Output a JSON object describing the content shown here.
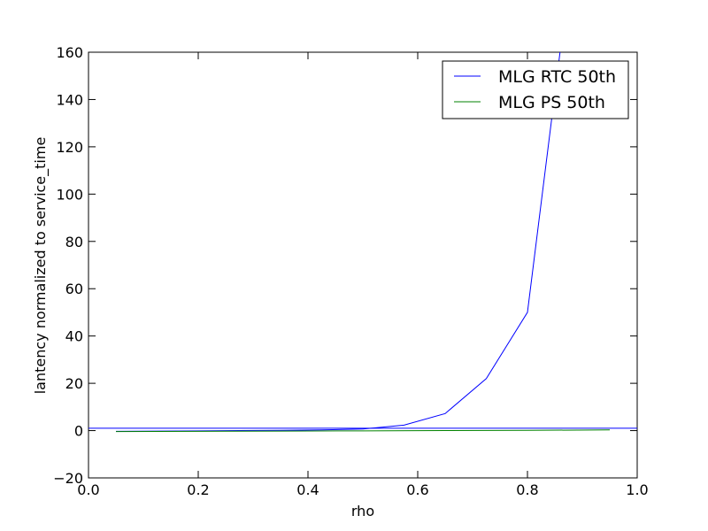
{
  "chart_data": {
    "type": "line",
    "xlabel": "rho",
    "ylabel": "lantency normalized to service_time",
    "xlim": [
      0,
      1
    ],
    "ylim": [
      -20,
      160
    ],
    "xticks": [
      {
        "value": 0,
        "label": "0.0"
      },
      0.2,
      0.4,
      0.6,
      0.8,
      {
        "value": 1,
        "label": "1.0"
      }
    ],
    "yticks": [
      {
        "value": -20,
        "label": "−20"
      },
      0,
      20,
      40,
      60,
      80,
      100,
      120,
      140,
      160
    ],
    "hline": {
      "value": 1,
      "color": "#0000ff"
    },
    "legend": "upper right",
    "series": [
      {
        "name": "MLG RTC 50th",
        "color": "#0000ff",
        "x": [
          0.05,
          0.125,
          0.2,
          0.275,
          0.35,
          0.425,
          0.5,
          0.575,
          0.65,
          0.725,
          0.8,
          0.875
        ],
        "values": [
          -0.3,
          -0.2,
          -0.1,
          0,
          0.1,
          0.3,
          0.7,
          2.3,
          7.2,
          22,
          50,
          189
        ]
      },
      {
        "name": "MLG PS 50th",
        "color": "#008000",
        "x": [
          0.05,
          0.2,
          0.35,
          0.5,
          0.65,
          0.8,
          0.95
        ],
        "values": [
          -0.4,
          -0.3,
          -0.2,
          -0.1,
          0,
          0.1,
          0.3
        ]
      }
    ]
  }
}
